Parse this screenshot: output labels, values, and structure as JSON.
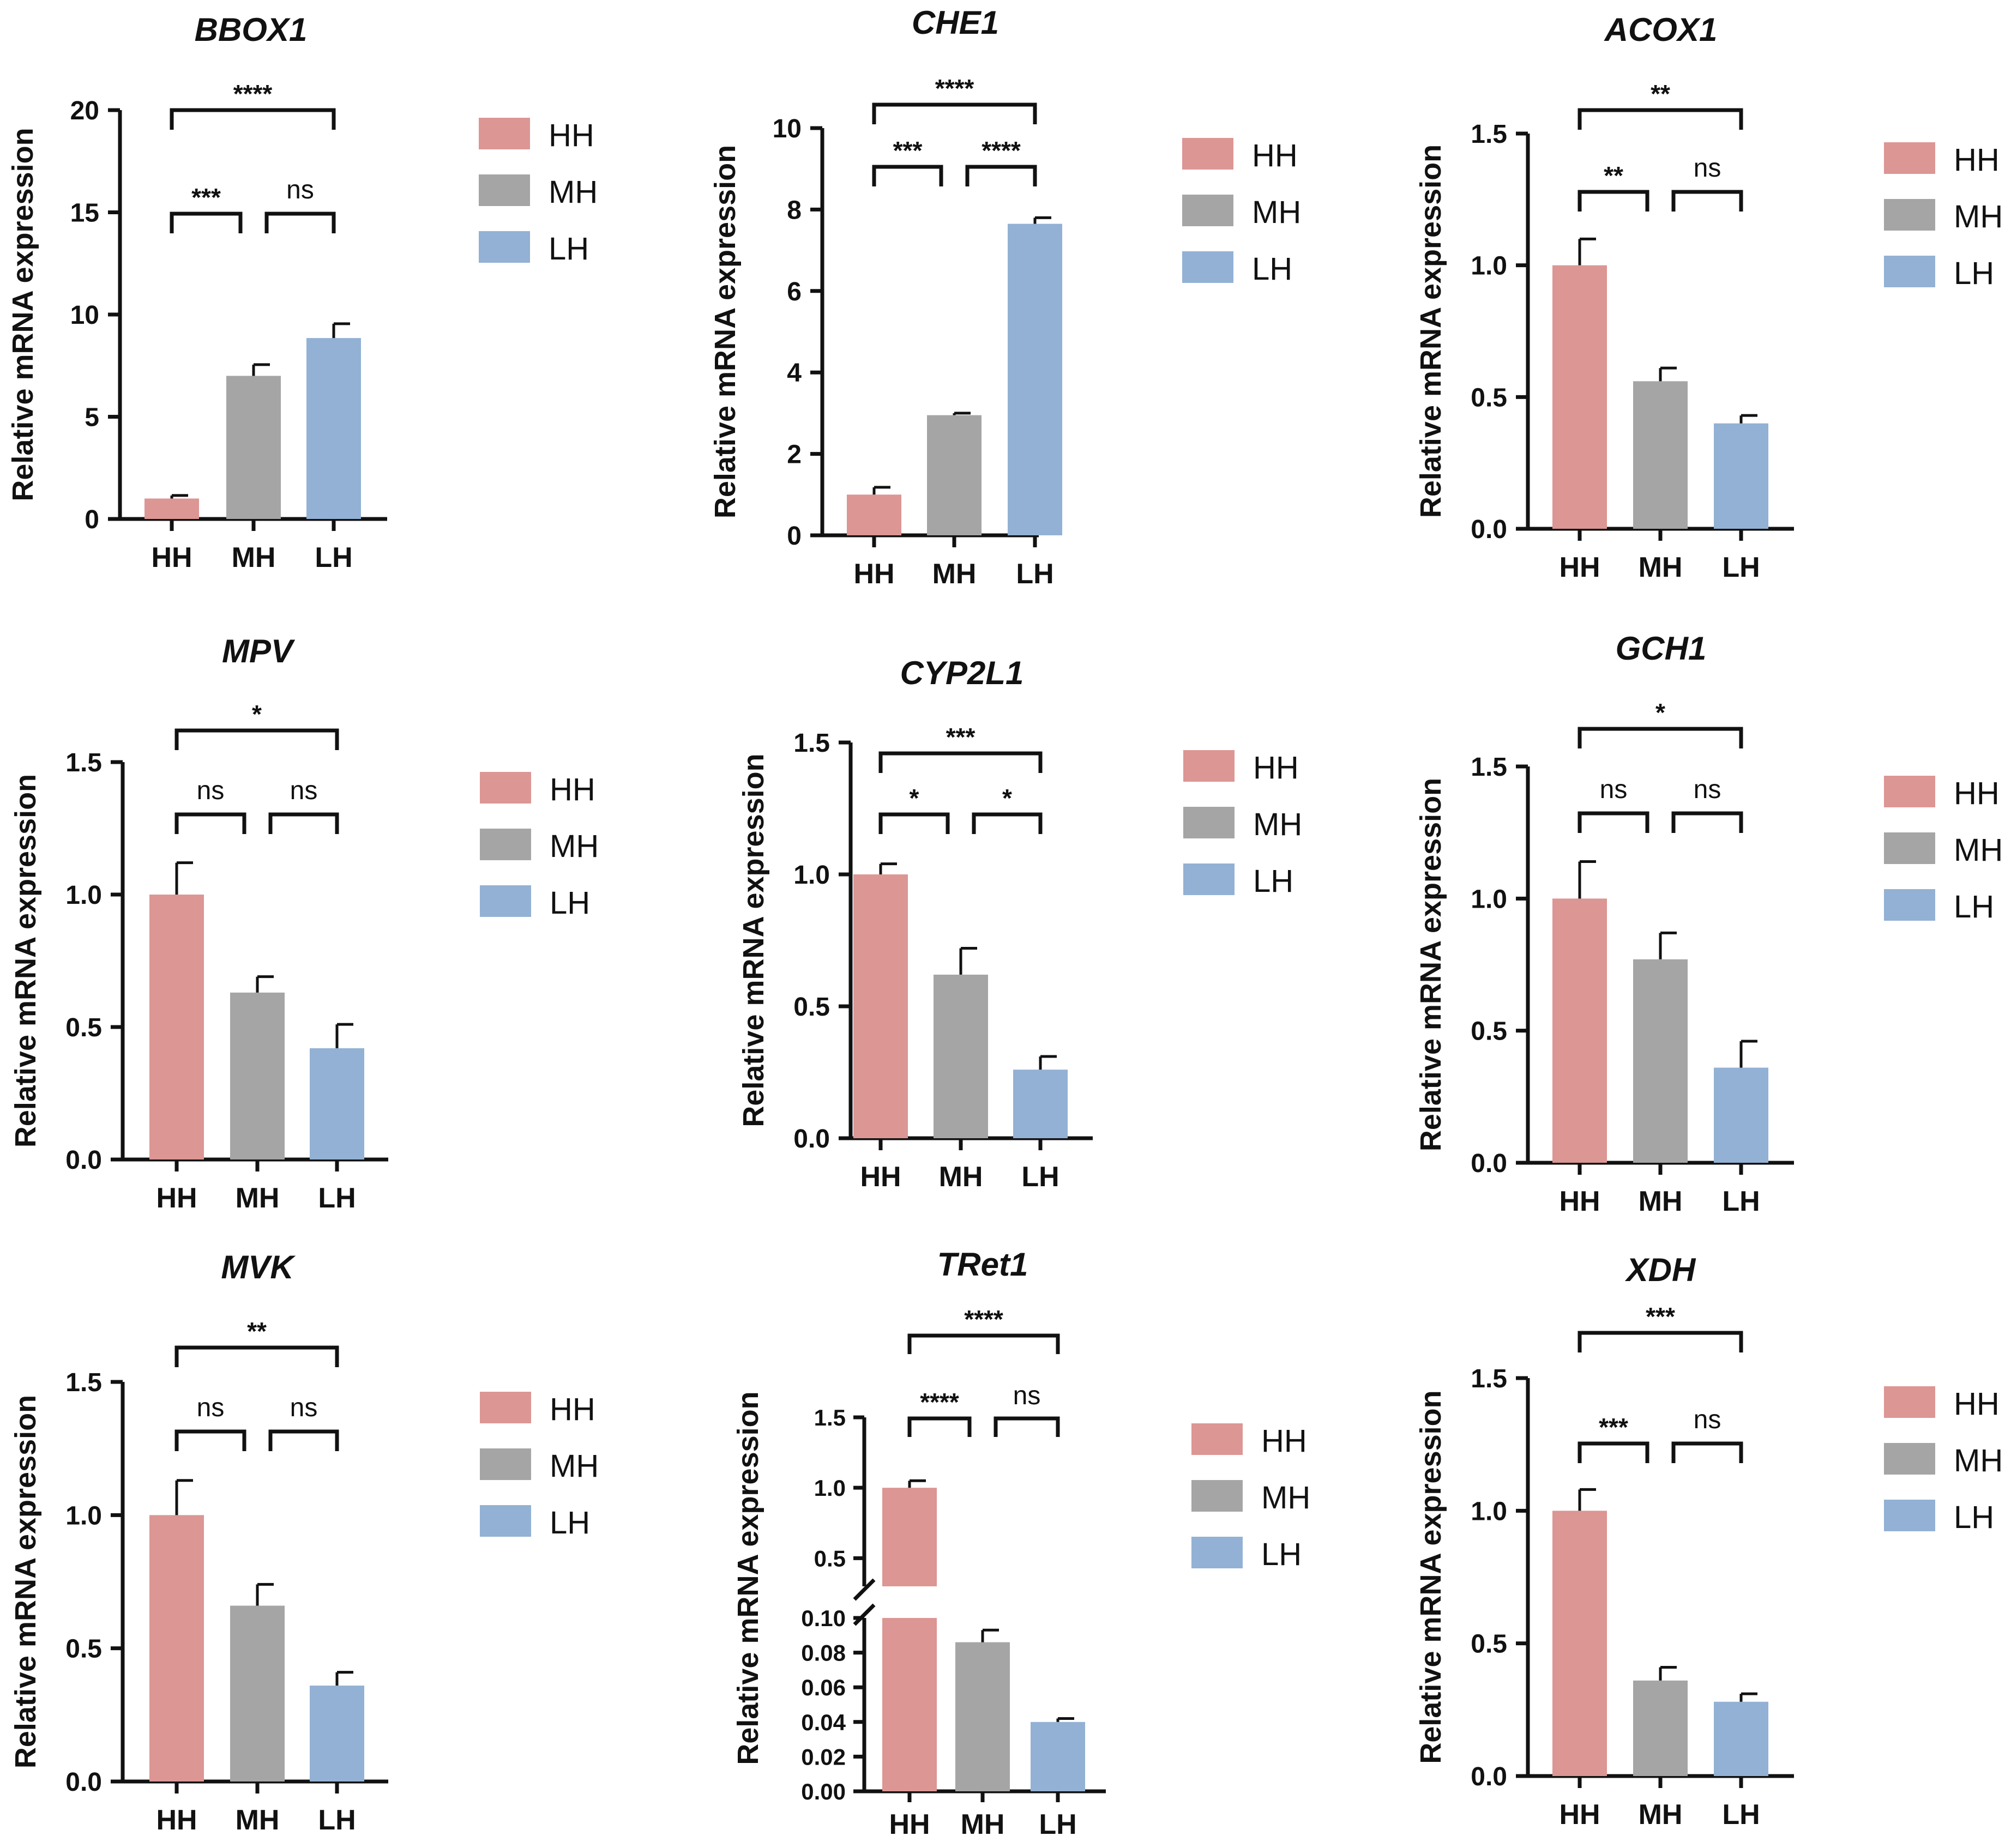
{
  "figure": {
    "y_axis_label": "Relative mRNA expression"
  },
  "chart_data": [
    {
      "type": "bar",
      "title": "BBOX1",
      "categories": [
        "HH",
        "MH",
        "LH"
      ],
      "values": [
        1.0,
        7.0,
        8.85
      ],
      "errors": [
        0.15,
        0.55,
        0.7
      ],
      "ylim": [
        0,
        20
      ],
      "yticks": [
        "0",
        "5",
        "10",
        "15",
        "20"
      ],
      "ytick_values": [
        0,
        5,
        10,
        15,
        20
      ],
      "ylabel": "Relative mRNA expression",
      "legend": [
        "HH",
        "MH",
        "LH"
      ],
      "colors": [
        "#dc9694",
        "#a5a5a5",
        "#93b1d4"
      ],
      "significance": [
        {
          "pair": [
            "HH",
            "MH"
          ],
          "label": "***"
        },
        {
          "pair": [
            "MH",
            "LH"
          ],
          "label": "ns"
        },
        {
          "pair": [
            "HH",
            "LH"
          ],
          "label": "****"
        }
      ]
    },
    {
      "type": "bar",
      "title": "CHE1",
      "categories": [
        "HH",
        "MH",
        "LH"
      ],
      "values": [
        1.0,
        2.95,
        7.65
      ],
      "errors": [
        0.18,
        0.05,
        0.15
      ],
      "ylim": [
        0,
        10
      ],
      "yticks": [
        "0",
        "2",
        "4",
        "6",
        "8",
        "10"
      ],
      "ytick_values": [
        0,
        2,
        4,
        6,
        8,
        10
      ],
      "ylabel": "Relative mRNA expression",
      "legend": [
        "HH",
        "MH",
        "LH"
      ],
      "colors": [
        "#dc9694",
        "#a5a5a5",
        "#93b1d4"
      ],
      "significance": [
        {
          "pair": [
            "HH",
            "MH"
          ],
          "label": "***"
        },
        {
          "pair": [
            "MH",
            "LH"
          ],
          "label": "****"
        },
        {
          "pair": [
            "HH",
            "LH"
          ],
          "label": "****"
        }
      ]
    },
    {
      "type": "bar",
      "title": "ACOX1",
      "categories": [
        "HH",
        "MH",
        "LH"
      ],
      "values": [
        1.0,
        0.56,
        0.4
      ],
      "errors": [
        0.1,
        0.05,
        0.03
      ],
      "ylim": [
        0,
        1.5
      ],
      "yticks": [
        "0.0",
        "0.5",
        "1.0",
        "1.5"
      ],
      "ytick_values": [
        0,
        0.5,
        1,
        1.5
      ],
      "ylabel": "Relative mRNA expression",
      "legend": [
        "HH",
        "MH",
        "LH"
      ],
      "colors": [
        "#dc9694",
        "#a5a5a5",
        "#93b1d4"
      ],
      "significance": [
        {
          "pair": [
            "HH",
            "MH"
          ],
          "label": "**"
        },
        {
          "pair": [
            "MH",
            "LH"
          ],
          "label": "ns"
        },
        {
          "pair": [
            "HH",
            "LH"
          ],
          "label": "**"
        }
      ]
    },
    {
      "type": "bar",
      "title": "MPV",
      "categories": [
        "HH",
        "MH",
        "LH"
      ],
      "values": [
        1.0,
        0.63,
        0.42
      ],
      "errors": [
        0.12,
        0.06,
        0.09
      ],
      "ylim": [
        0,
        1.5
      ],
      "yticks": [
        "0.0",
        "0.5",
        "1.0",
        "1.5"
      ],
      "ytick_values": [
        0,
        0.5,
        1,
        1.5
      ],
      "ylabel": "Relative mRNA expression",
      "legend": [
        "HH",
        "MH",
        "LH"
      ],
      "colors": [
        "#dc9694",
        "#a5a5a5",
        "#93b1d4"
      ],
      "significance": [
        {
          "pair": [
            "HH",
            "MH"
          ],
          "label": "ns"
        },
        {
          "pair": [
            "MH",
            "LH"
          ],
          "label": "ns"
        },
        {
          "pair": [
            "HH",
            "LH"
          ],
          "label": "*"
        }
      ]
    },
    {
      "type": "bar",
      "title": "CYP2L1",
      "categories": [
        "HH",
        "MH",
        "LH"
      ],
      "values": [
        1.0,
        0.62,
        0.26
      ],
      "errors": [
        0.04,
        0.1,
        0.05
      ],
      "ylim": [
        0,
        1.5
      ],
      "yticks": [
        "0.0",
        "0.5",
        "1.0",
        "1.5"
      ],
      "ytick_values": [
        0,
        0.5,
        1,
        1.5
      ],
      "ylabel": "Relative mRNA expression",
      "legend": [
        "HH",
        "MH",
        "LH"
      ],
      "colors": [
        "#dc9694",
        "#a5a5a5",
        "#93b1d4"
      ],
      "significance": [
        {
          "pair": [
            "HH",
            "MH"
          ],
          "label": "*"
        },
        {
          "pair": [
            "MH",
            "LH"
          ],
          "label": "*"
        },
        {
          "pair": [
            "HH",
            "LH"
          ],
          "label": "***"
        }
      ]
    },
    {
      "type": "bar",
      "title": "GCH1",
      "categories": [
        "HH",
        "MH",
        "LH"
      ],
      "values": [
        1.0,
        0.77,
        0.36
      ],
      "errors": [
        0.14,
        0.1,
        0.1
      ],
      "ylim": [
        0,
        1.5
      ],
      "yticks": [
        "0.0",
        "0.5",
        "1.0",
        "1.5"
      ],
      "ytick_values": [
        0,
        0.5,
        1,
        1.5
      ],
      "ylabel": "Relative mRNA expression",
      "legend": [
        "HH",
        "MH",
        "LH"
      ],
      "colors": [
        "#dc9694",
        "#a5a5a5",
        "#93b1d4"
      ],
      "significance": [
        {
          "pair": [
            "HH",
            "MH"
          ],
          "label": "ns"
        },
        {
          "pair": [
            "MH",
            "LH"
          ],
          "label": "ns"
        },
        {
          "pair": [
            "HH",
            "LH"
          ],
          "label": "*"
        }
      ]
    },
    {
      "type": "bar",
      "title": "MVK",
      "categories": [
        "HH",
        "MH",
        "LH"
      ],
      "values": [
        1.0,
        0.66,
        0.36
      ],
      "errors": [
        0.13,
        0.08,
        0.05
      ],
      "ylim": [
        0,
        1.5
      ],
      "yticks": [
        "0.0",
        "0.5",
        "1.0",
        "1.5"
      ],
      "ytick_values": [
        0,
        0.5,
        1,
        1.5
      ],
      "ylabel": "Relative mRNA expression",
      "legend": [
        "HH",
        "MH",
        "LH"
      ],
      "colors": [
        "#dc9694",
        "#a5a5a5",
        "#93b1d4"
      ],
      "significance": [
        {
          "pair": [
            "HH",
            "MH"
          ],
          "label": "ns"
        },
        {
          "pair": [
            "MH",
            "LH"
          ],
          "label": "ns"
        },
        {
          "pair": [
            "HH",
            "LH"
          ],
          "label": "**"
        }
      ]
    },
    {
      "type": "bar",
      "title": "TRet1",
      "broken_axis": true,
      "categories": [
        "HH",
        "MH",
        "LH"
      ],
      "values": [
        1.0,
        0.086,
        0.04
      ],
      "errors": [
        0.05,
        0.007,
        0.002
      ],
      "ylim_lower": [
        0,
        0.1
      ],
      "ylim_upper": [
        0.3,
        1.5
      ],
      "yticks_lower": [
        "0.00",
        "0.02",
        "0.04",
        "0.06",
        "0.08",
        "0.10"
      ],
      "ytick_values_lower": [
        0,
        0.02,
        0.04,
        0.06,
        0.08,
        0.1
      ],
      "yticks_upper": [
        "0.5",
        "1.0",
        "1.5"
      ],
      "ytick_values_upper": [
        0.5,
        1,
        1.5
      ],
      "ylabel": "Relative mRNA expression",
      "legend": [
        "HH",
        "MH",
        "LH"
      ],
      "colors": [
        "#dc9694",
        "#a5a5a5",
        "#93b1d4"
      ],
      "significance": [
        {
          "pair": [
            "HH",
            "MH"
          ],
          "label": "****"
        },
        {
          "pair": [
            "MH",
            "LH"
          ],
          "label": "ns"
        },
        {
          "pair": [
            "HH",
            "LH"
          ],
          "label": "****"
        }
      ]
    },
    {
      "type": "bar",
      "title": "XDH",
      "categories": [
        "HH",
        "MH",
        "LH"
      ],
      "values": [
        1.0,
        0.36,
        0.28
      ],
      "errors": [
        0.08,
        0.05,
        0.03
      ],
      "ylim": [
        0,
        1.5
      ],
      "yticks": [
        "0.0",
        "0.5",
        "1.0",
        "1.5"
      ],
      "ytick_values": [
        0,
        0.5,
        1,
        1.5
      ],
      "ylabel": "Relative mRNA expression",
      "legend": [
        "HH",
        "MH",
        "LH"
      ],
      "colors": [
        "#dc9694",
        "#a5a5a5",
        "#93b1d4"
      ],
      "significance": [
        {
          "pair": [
            "HH",
            "MH"
          ],
          "label": "***"
        },
        {
          "pair": [
            "MH",
            "LH"
          ],
          "label": "ns"
        },
        {
          "pair": [
            "HH",
            "LH"
          ],
          "label": "***"
        }
      ]
    }
  ]
}
